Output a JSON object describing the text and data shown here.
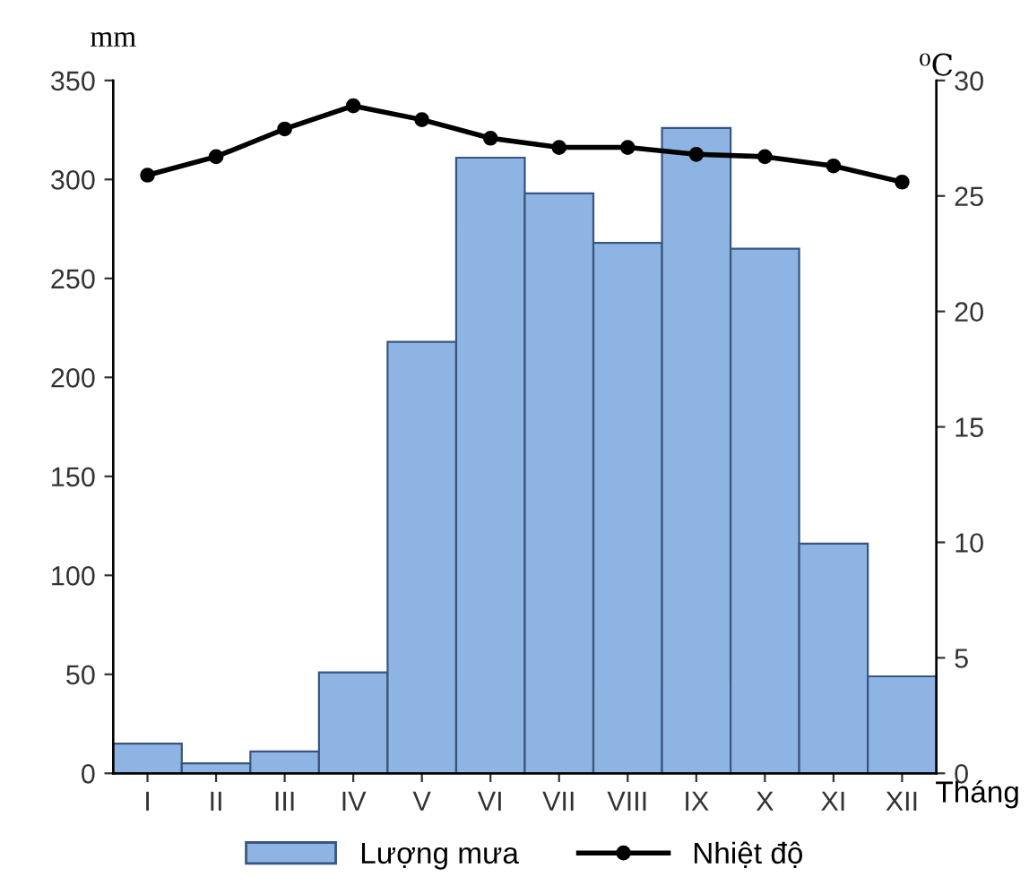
{
  "chart_data": {
    "type": "bar",
    "categories": [
      "I",
      "II",
      "III",
      "IV",
      "V",
      "VI",
      "VII",
      "VIII",
      "IX",
      "X",
      "XI",
      "XII"
    ],
    "ylabel": "mm",
    "y2label": "⁰C",
    "xlabel": "Tháng",
    "series": [
      {
        "name": "Lượng mưa",
        "color": "#8db4e2",
        "values": [
          15,
          5,
          11,
          51,
          218,
          311,
          293,
          268,
          326,
          265,
          116,
          49
        ]
      },
      {
        "name": "Nhiệt độ",
        "type": "line",
        "axis": "y2",
        "color": "#000000",
        "marker": "circle",
        "values": [
          25.9,
          26.7,
          27.9,
          28.9,
          28.3,
          27.5,
          27.1,
          27.1,
          26.8,
          26.7,
          26.3,
          25.6
        ]
      }
    ],
    "ylim": [
      0,
      350
    ],
    "yticks": [
      0,
      50,
      100,
      150,
      200,
      250,
      300,
      350
    ],
    "y2lim": [
      0,
      30
    ],
    "y2ticks": [
      0,
      5,
      10,
      15,
      20,
      25,
      30
    ],
    "grid": false,
    "legend": "bottom"
  }
}
